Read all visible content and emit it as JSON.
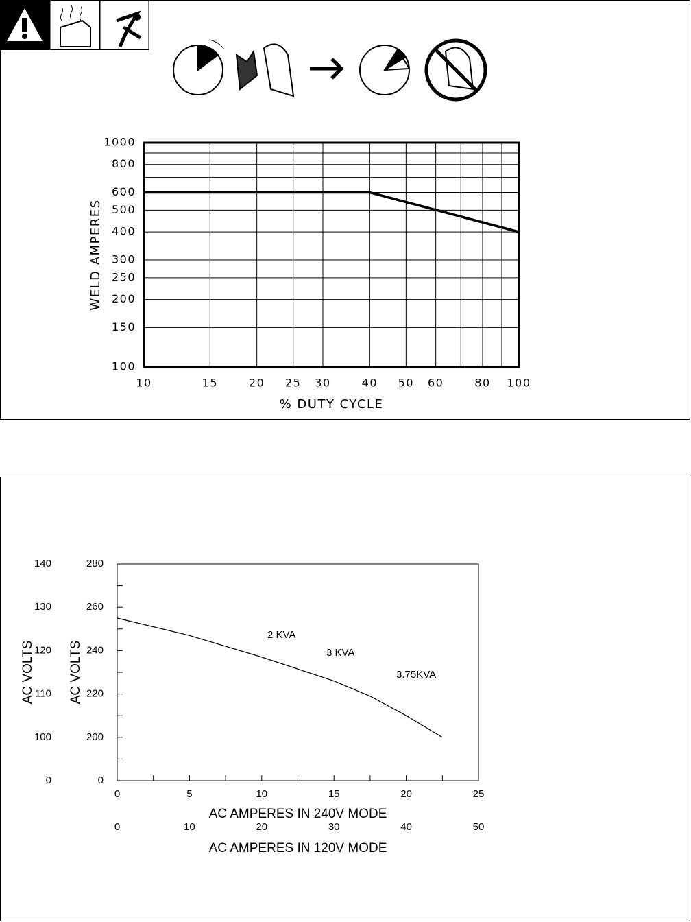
{
  "chart_data": [
    {
      "type": "line",
      "y_label": "WELD AMPERES",
      "x_label": "% DUTY CYCLE",
      "x": [
        10,
        40,
        100
      ],
      "series": [
        {
          "color": "#000000",
          "values": [
            600,
            600,
            400
          ]
        }
      ],
      "log_x": true,
      "log_y": true,
      "grid": true,
      "xlim": [
        10,
        100
      ],
      "xticks": [
        10,
        15,
        20,
        25,
        30,
        40,
        50,
        60,
        80,
        100
      ],
      "xminor_grid": [
        70,
        90
      ],
      "ylim": [
        100,
        1000
      ],
      "yticks": [
        100,
        150,
        200,
        250,
        300,
        400,
        500,
        600,
        800,
        1000
      ],
      "yminor_grid": [
        700,
        900
      ]
    },
    {
      "type": "line",
      "y_label": "AC VOLTS",
      "y2_label": "AC VOLTS",
      "x_label": "AC AMPERES IN 240V MODE",
      "x2_label": "AC AMPERES IN 120V MODE",
      "x": [
        0,
        5,
        10,
        15,
        17.5,
        20,
        22.5
      ],
      "series": [
        {
          "color": "#000000",
          "values": [
            255,
            247,
            237,
            226,
            219,
            210,
            200
          ]
        }
      ],
      "grid": false,
      "axis_break": true,
      "xlim": [
        0,
        25
      ],
      "xticks": [
        0,
        5,
        10,
        15,
        20,
        25
      ],
      "xminor": [
        2.5,
        7.5,
        12.5,
        17.5,
        22.5
      ],
      "x2lim": [
        0,
        50
      ],
      "x2ticks": [
        0,
        10,
        20,
        30,
        40,
        50
      ],
      "ylim": [
        180,
        280
      ],
      "yticks": [
        0,
        200,
        220,
        240,
        260,
        280
      ],
      "yminor": [
        190,
        210,
        230,
        250,
        270
      ],
      "y2lim": [
        90,
        140
      ],
      "y2ticks": [
        0,
        100,
        110,
        120,
        130,
        140
      ],
      "annotations": [
        "2 KVA",
        "3 KVA",
        "3.75KVA"
      ]
    }
  ]
}
